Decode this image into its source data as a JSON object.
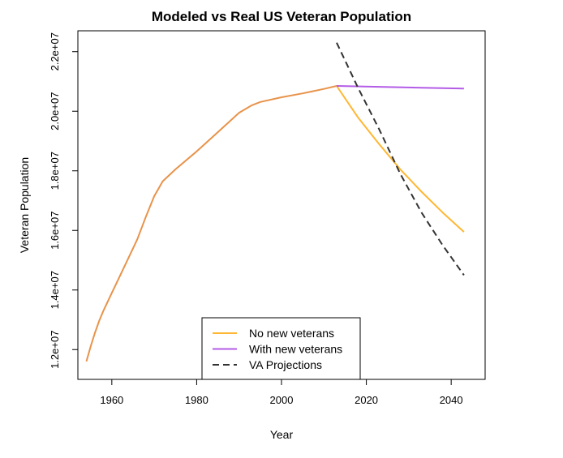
{
  "chart_data": {
    "type": "line",
    "title": "Modeled vs Real US Veteran Population",
    "xlabel": "Year",
    "ylabel": "Veteran Population",
    "xlim": [
      1952,
      2048
    ],
    "ylim": [
      11000000,
      22700000
    ],
    "x_ticks": [
      1960,
      1980,
      2000,
      2020,
      2040
    ],
    "x_tick_labels": [
      "1960",
      "1980",
      "2000",
      "2020",
      "2040"
    ],
    "y_ticks": [
      12000000,
      14000000,
      16000000,
      18000000,
      20000000,
      22000000
    ],
    "y_tick_labels": [
      "1.2e+07",
      "1.4e+07",
      "1.6e+07",
      "1.8e+07",
      "2.0e+07",
      "2.2e+07"
    ],
    "grid": false,
    "legend_position": "bottom-center",
    "historical": {
      "color": "#e8934a",
      "x": [
        1954,
        1955,
        1956,
        1957,
        1958,
        1960,
        1962,
        1964,
        1966,
        1968,
        1970,
        1972,
        1975,
        1980,
        1985,
        1990,
        1993,
        1995,
        2000,
        2005,
        2010,
        2013
      ],
      "y": [
        11600000,
        12100000,
        12550000,
        12950000,
        13300000,
        13900000,
        14500000,
        15100000,
        15700000,
        16450000,
        17150000,
        17650000,
        18050000,
        18650000,
        19300000,
        19950000,
        20200000,
        20310000,
        20470000,
        20600000,
        20750000,
        20850000
      ]
    },
    "series": [
      {
        "name": "No new veterans",
        "color": "#ffb733",
        "dash": "solid",
        "x": [
          2013,
          2018,
          2023,
          2028,
          2033,
          2038,
          2043
        ],
        "y": [
          20850000,
          19800000,
          18900000,
          18050000,
          17300000,
          16600000,
          15950000
        ]
      },
      {
        "name": "With new veterans",
        "color": "#b35ce6",
        "dash": "solid",
        "x": [
          2013,
          2023,
          2033,
          2043
        ],
        "y": [
          20850000,
          20820000,
          20790000,
          20760000
        ]
      },
      {
        "name": "VA Projections",
        "color": "#333333",
        "dash": "dashed",
        "x": [
          2013,
          2018,
          2023,
          2028,
          2033,
          2038,
          2043
        ],
        "y": [
          22300000,
          20800000,
          19400000,
          17900000,
          16600000,
          15500000,
          14500000
        ]
      }
    ]
  }
}
